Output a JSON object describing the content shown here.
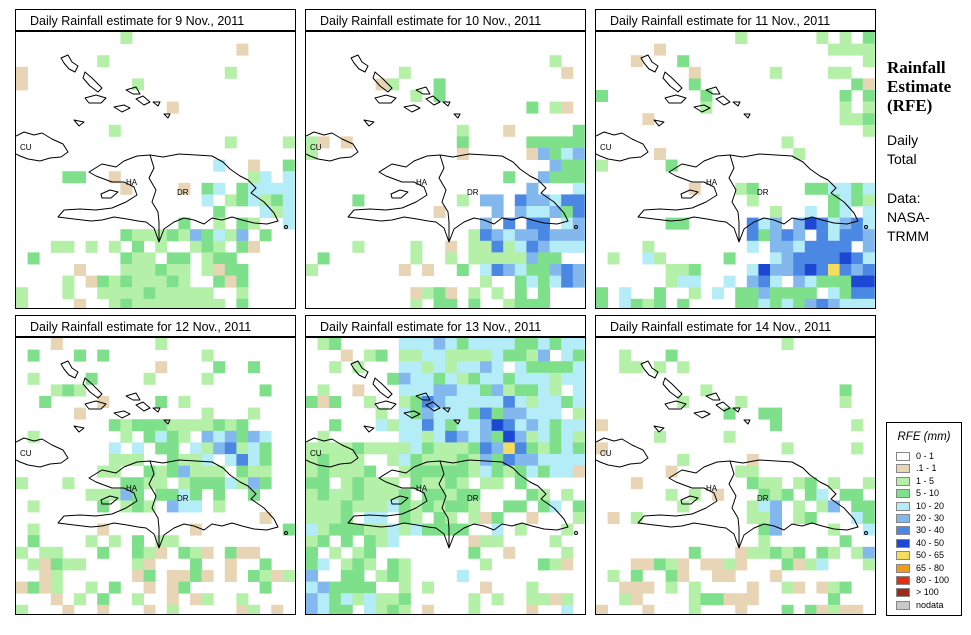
{
  "side": {
    "title_lines": [
      "Rainfall",
      "Estimate",
      "(RFE)"
    ],
    "sub1_lines": [
      "Daily",
      "Total"
    ],
    "sub2_lines": [
      "Data:",
      "NASA-",
      "TRMM"
    ]
  },
  "panels": [
    {
      "title": "Daily Rainfall estimate for  9 Nov., 2011"
    },
    {
      "title": "Daily Rainfall estimate for  10 Nov., 2011"
    },
    {
      "title": "Daily Rainfall estimate for  11 Nov., 2011"
    },
    {
      "title": "Daily Rainfall estimate for  12 Nov., 2011"
    },
    {
      "title": "Daily Rainfall estimate for  13 Nov., 2011"
    },
    {
      "title": "Daily Rainfall estimate for  14 Nov., 2011"
    }
  ],
  "map_labels": {
    "cuba": "CU",
    "haiti": "HA",
    "dominican_republic": "DR"
  },
  "legend": {
    "title": "RFE (mm)",
    "items": [
      {
        "label": "0 - 1",
        "color": "#ffffff"
      },
      {
        "label": ".1 - 1",
        "color": "#e8d5b5"
      },
      {
        "label": "1 - 5",
        "color": "#b4f0a8"
      },
      {
        "label": "5 - 10",
        "color": "#7ee08a"
      },
      {
        "label": "10 - 20",
        "color": "#b4ecf8"
      },
      {
        "label": "20 - 30",
        "color": "#82b8ee"
      },
      {
        "label": "30 - 40",
        "color": "#4a88e4"
      },
      {
        "label": "40 - 50",
        "color": "#1c48d4"
      },
      {
        "label": "50 - 65",
        "color": "#f4dc5c"
      },
      {
        "label": "65 - 80",
        "color": "#f49a18"
      },
      {
        "label": "80 - 100",
        "color": "#e03010"
      },
      {
        "label": "> 100",
        "color": "#a02818"
      },
      {
        "label": "nodata",
        "color": "#c8c8c8"
      }
    ]
  }
}
